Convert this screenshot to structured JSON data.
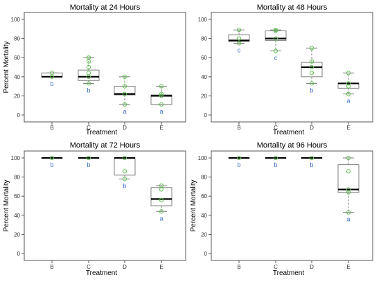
{
  "colors": {
    "points": "#5cbf4c",
    "letters": "#3f6fc4",
    "box": "#7f7f7f",
    "median": "#000000",
    "axis": "#555555"
  },
  "chart_data": [
    {
      "type": "box",
      "title": "Mortality at 24 Hours",
      "xlabel": "Treatment",
      "ylabel": "Percent Mortality",
      "ylim": [
        0,
        100
      ],
      "yticks": [
        0,
        20,
        40,
        60,
        80,
        100
      ],
      "categories": [
        "B",
        "C",
        "D",
        "E"
      ],
      "boxes": [
        {
          "category": "B",
          "min": 40,
          "q1": 40,
          "median": 40,
          "q3": 44,
          "max": 44,
          "points": [
            40,
            44
          ],
          "letter": "b"
        },
        {
          "category": "C",
          "min": 33,
          "q1": 36,
          "median": 40,
          "q3": 47,
          "max": 60,
          "points": [
            33,
            40,
            44,
            50,
            56,
            60
          ],
          "letter": "b"
        },
        {
          "category": "D",
          "min": 11,
          "q1": 21,
          "median": 22,
          "q3": 30,
          "max": 40,
          "points": [
            11,
            22,
            30,
            40
          ],
          "letter": "a"
        },
        {
          "category": "E",
          "min": 11,
          "q1": 11,
          "median": 20,
          "q3": 21,
          "max": 30,
          "points": [
            11,
            20,
            22,
            30
          ],
          "letter": "a"
        }
      ]
    },
    {
      "type": "box",
      "title": "Mortality at 48 Hours",
      "xlabel": "Treatment",
      "ylabel": "",
      "ylim": [
        0,
        100
      ],
      "yticks": [
        0,
        20,
        40,
        60,
        80,
        100
      ],
      "categories": [
        "B",
        "C",
        "D",
        "E"
      ],
      "boxes": [
        {
          "category": "B",
          "min": 75,
          "q1": 77,
          "median": 78,
          "q3": 84,
          "max": 89,
          "points": [
            75,
            80,
            89
          ],
          "letter": "c"
        },
        {
          "category": "C",
          "min": 67,
          "q1": 78,
          "median": 80,
          "q3": 88,
          "max": 89,
          "points": [
            67,
            80,
            88,
            89
          ],
          "letter": "c"
        },
        {
          "category": "D",
          "min": 33,
          "q1": 40,
          "median": 50,
          "q3": 55,
          "max": 70,
          "points": [
            33,
            44,
            50,
            56,
            70
          ],
          "letter": "b"
        },
        {
          "category": "E",
          "min": 22,
          "q1": 28,
          "median": 33,
          "q3": 33,
          "max": 44,
          "points": [
            22,
            30,
            33,
            44
          ],
          "letter": "a"
        }
      ]
    },
    {
      "type": "box",
      "title": "Mortality at 72 Hours",
      "xlabel": "Treatment",
      "ylabel": "Percent Mortality",
      "ylim": [
        0,
        100
      ],
      "yticks": [
        0,
        20,
        40,
        60,
        80,
        100
      ],
      "categories": [
        "B",
        "C",
        "D",
        "E"
      ],
      "boxes": [
        {
          "category": "B",
          "min": 100,
          "q1": 100,
          "median": 100,
          "q3": 100,
          "max": 100,
          "points": [
            100
          ],
          "letter": "b"
        },
        {
          "category": "C",
          "min": 100,
          "q1": 100,
          "median": 100,
          "q3": 100,
          "max": 100,
          "points": [
            100
          ],
          "letter": "b"
        },
        {
          "category": "D",
          "min": 78,
          "q1": 82,
          "median": 100,
          "q3": 100,
          "max": 100,
          "points": [
            78,
            86,
            100
          ],
          "letter": "b"
        },
        {
          "category": "E",
          "min": 44,
          "q1": 50,
          "median": 57,
          "q3": 69,
          "max": 71,
          "points": [
            44,
            56,
            67,
            71
          ],
          "letter": "a"
        }
      ]
    },
    {
      "type": "box",
      "title": "Mortality at 96 Hours",
      "xlabel": "Treatment",
      "ylabel": "Percent Mortality",
      "ylim": [
        0,
        100
      ],
      "yticks": [
        0,
        20,
        40,
        60,
        80,
        100
      ],
      "categories": [
        "B",
        "C",
        "D",
        "E"
      ],
      "boxes": [
        {
          "category": "B",
          "min": 100,
          "q1": 100,
          "median": 100,
          "q3": 100,
          "max": 100,
          "points": [
            100
          ],
          "letter": "b"
        },
        {
          "category": "C",
          "min": 100,
          "q1": 100,
          "median": 100,
          "q3": 100,
          "max": 100,
          "points": [
            100
          ],
          "letter": "b"
        },
        {
          "category": "D",
          "min": 100,
          "q1": 100,
          "median": 100,
          "q3": 100,
          "max": 100,
          "points": [
            100
          ],
          "letter": "b"
        },
        {
          "category": "E",
          "min": 43,
          "q1": 64,
          "median": 67,
          "q3": 93,
          "max": 100,
          "points": [
            43,
            64,
            67,
            86,
            100
          ],
          "letter": "a"
        }
      ]
    }
  ]
}
